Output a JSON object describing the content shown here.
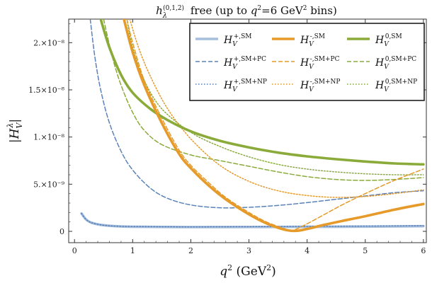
{
  "chart_data": {
    "type": "line",
    "title": "h_λ^(0,1,2) free (up to q²=6 GeV² bins)",
    "xlabel": "q² (GeV²)",
    "ylabel": "|H_V^λ|",
    "xlim": [
      -0.1,
      6.05
    ],
    "ylim": [
      -1.2e-09,
      2.25e-08
    ],
    "x_ticks": [
      0,
      1,
      2,
      3,
      4,
      5,
      6
    ],
    "x_tick_labels": [
      "0",
      "1",
      "2",
      "3",
      "4",
      "5",
      "6"
    ],
    "y_ticks": [
      0,
      5e-09,
      1e-08,
      1.5e-08,
      2e-08
    ],
    "y_tick_labels": [
      "0",
      "5.×10⁻⁹",
      "1.×10⁻⁸",
      "1.5×10⁻⁸",
      "2.×10⁻⁸"
    ],
    "grid": false,
    "legend_position": "top-right",
    "colors": {
      "plus": "#5b82b8",
      "plus_sm": "#a6bfdd",
      "minus": "#e59a2a",
      "zero": "#8aab3a"
    },
    "series": [
      {
        "key": "plus_sm",
        "name": "H_V^{+,SM}",
        "style": "solid-thick",
        "color": "#a6bfdd",
        "x": [
          0.12,
          0.2,
          0.3,
          0.5,
          0.8,
          1.2,
          2,
          3,
          4,
          5,
          6
        ],
        "y": [
          1.9e-09,
          1.25e-09,
          9e-10,
          6.5e-10,
          5.2e-10,
          4.8e-10,
          4.5e-10,
          4.6e-10,
          4.8e-10,
          5e-10,
          5.5e-10
        ]
      },
      {
        "key": "plus_pc",
        "name": "H_V^{+,SM+PC}",
        "style": "dashed",
        "color": "#5b82b8",
        "x": [
          0.27,
          0.35,
          0.45,
          0.6,
          0.8,
          1.0,
          1.3,
          1.6,
          2.0,
          2.5,
          3.0,
          3.5,
          4.0,
          4.5,
          5.0,
          5.5,
          6.0
        ],
        "y": [
          2.25e-08,
          1.85e-08,
          1.5e-08,
          1.15e-08,
          8.5e-09,
          6.5e-09,
          4.6e-09,
          3.5e-09,
          2.8e-09,
          2.5e-09,
          2.55e-09,
          2.75e-09,
          3.05e-09,
          3.4e-09,
          3.75e-09,
          4.1e-09,
          4.3e-09
        ]
      },
      {
        "key": "plus_np",
        "name": "H_V^{+,SM+NP}",
        "style": "dotted",
        "color": "#5b82b8",
        "x": [
          0.12,
          0.2,
          0.3,
          0.5,
          0.8,
          1.2,
          2,
          3,
          4,
          5,
          6
        ],
        "y": [
          1.9e-09,
          1.25e-09,
          9e-10,
          6.5e-10,
          5.3e-10,
          5e-10,
          4.8e-10,
          5e-10,
          5.3e-10,
          5.6e-10,
          6e-10
        ]
      },
      {
        "key": "minus_sm",
        "name": "H_V^{-,SM}",
        "style": "solid-thick",
        "color": "#e59a2a",
        "x": [
          0.85,
          1.0,
          1.2,
          1.5,
          1.8,
          2.0,
          2.3,
          2.6,
          3.0,
          3.3,
          3.6,
          3.8,
          4.0,
          4.3,
          4.6,
          5.0,
          5.5,
          6.0
        ],
        "y": [
          2.25e-08,
          1.9e-08,
          1.55e-08,
          1.15e-08,
          8.2e-09,
          6.7e-09,
          4.9e-09,
          3.4e-09,
          1.8e-09,
          8.5e-10,
          2e-10,
          5e-11,
          2.5e-10,
          7e-10,
          1.1e-09,
          1.6e-09,
          2.3e-09,
          2.9e-09
        ]
      },
      {
        "key": "minus_pc",
        "name": "H_V^{-,SM+PC}",
        "style": "dashed",
        "color": "#e59a2a",
        "x": [
          0.9,
          1.0,
          1.2,
          1.5,
          1.8,
          2.0,
          2.3,
          2.6,
          3.0,
          3.3,
          3.6,
          3.7,
          3.8,
          4.0,
          4.3,
          4.6,
          5.0,
          5.5,
          6.0
        ],
        "y": [
          2.25e-08,
          2e-08,
          1.6e-08,
          1.2e-08,
          8.6e-09,
          7e-09,
          5.2e-09,
          3.6e-09,
          2e-09,
          1e-09,
          3e-10,
          1e-10,
          2e-10,
          8e-10,
          1.8e-09,
          2.8e-09,
          4e-09,
          5.4e-09,
          6.6e-09
        ]
      },
      {
        "key": "minus_np",
        "name": "H_V^{-,SM+NP}",
        "style": "dotted",
        "color": "#e59a2a",
        "x": [
          0.95,
          1.1,
          1.3,
          1.6,
          2.0,
          2.5,
          3.0,
          3.5,
          4.0,
          4.5,
          5.0,
          5.5,
          6.0
        ],
        "y": [
          2.25e-08,
          1.95e-08,
          1.65e-08,
          1.3e-08,
          9.8e-09,
          7e-09,
          5.3e-09,
          4.3e-09,
          3.8e-09,
          3.6e-09,
          3.7e-09,
          4e-09,
          4.4e-09
        ]
      },
      {
        "key": "zero_sm",
        "name": "H_V^{0,SM}",
        "style": "solid-thick",
        "color": "#8aab3a",
        "x": [
          0.45,
          0.6,
          0.8,
          1.0,
          1.3,
          1.6,
          2.0,
          2.5,
          3.0,
          3.5,
          4.0,
          4.5,
          5.0,
          5.5,
          6.0
        ],
        "y": [
          2.25e-08,
          1.95e-08,
          1.66e-08,
          1.47e-08,
          1.3e-08,
          1.18e-08,
          1.06e-08,
          9.6e-09,
          8.9e-09,
          8.35e-09,
          7.95e-09,
          7.65e-09,
          7.4e-09,
          7.2e-09,
          7.1e-09
        ]
      },
      {
        "key": "zero_pc",
        "name": "H_V^{0,SM+PC}",
        "style": "dashed",
        "color": "#8aab3a",
        "x": [
          0.5,
          0.65,
          0.8,
          1.0,
          1.2,
          1.5,
          2.0,
          2.5,
          3.0,
          3.5,
          4.0,
          4.5,
          5.0,
          5.5,
          6.0
        ],
        "y": [
          2.25e-08,
          1.85e-08,
          1.55e-08,
          1.26e-08,
          1.07e-08,
          9.2e-09,
          8.1e-09,
          7.5e-09,
          6.9e-09,
          6.3e-09,
          5.8e-09,
          5.5e-09,
          5.4e-09,
          5.5e-09,
          5.7e-09
        ]
      },
      {
        "key": "zero_np",
        "name": "H_V^{0,SM+NP}",
        "style": "dotted",
        "color": "#8aab3a",
        "x": [
          0.9,
          1.0,
          1.2,
          1.5,
          2.0,
          2.5,
          3.0,
          3.5,
          4.0,
          4.5,
          5.0,
          5.5,
          6.0
        ],
        "y": [
          2.25e-08,
          1.95e-08,
          1.6e-08,
          1.3e-08,
          1.05e-08,
          9e-09,
          7.9e-09,
          7.1e-09,
          6.6e-09,
          6.3e-09,
          6.1e-09,
          6e-09,
          6e-09
        ]
      }
    ]
  }
}
